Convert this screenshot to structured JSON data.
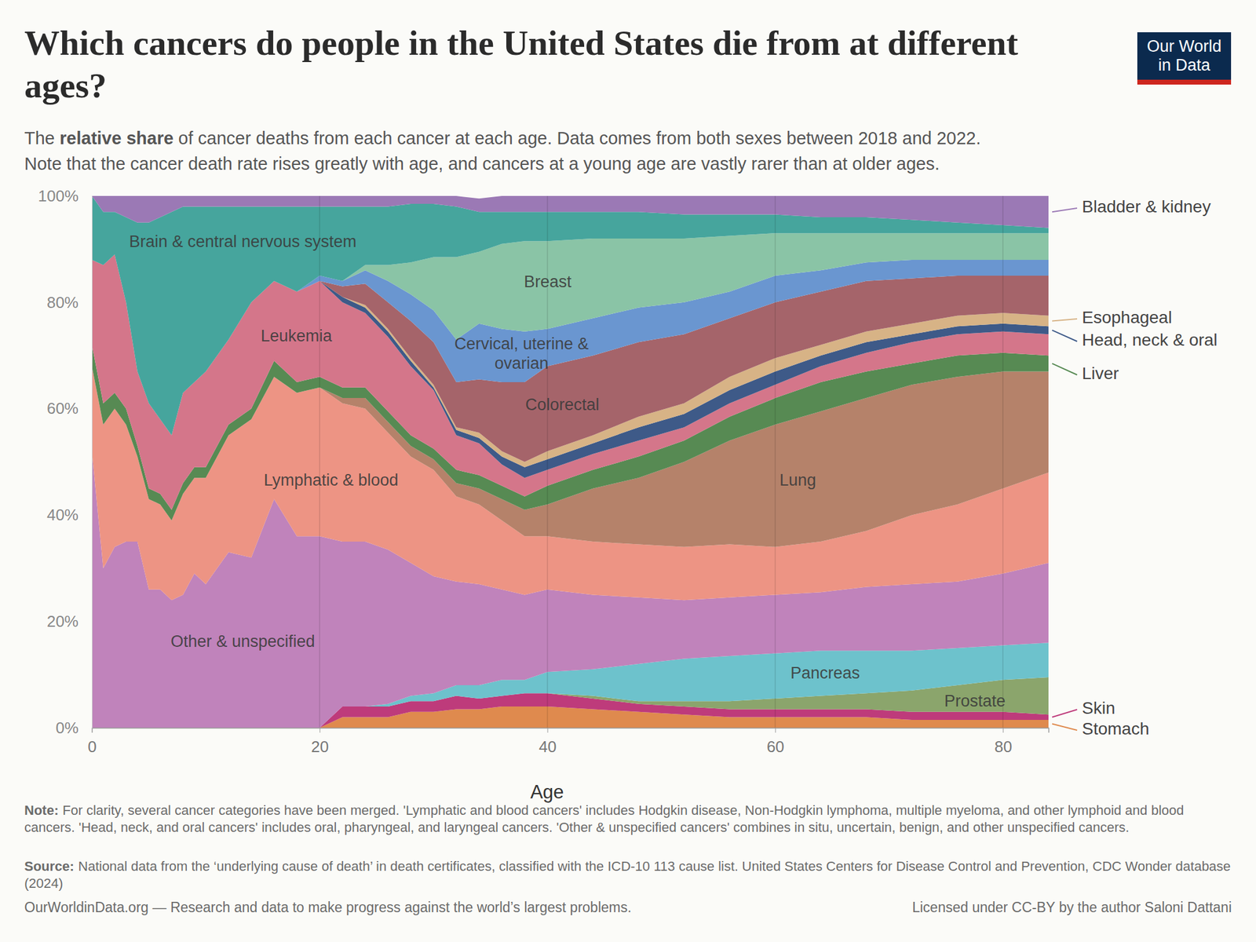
{
  "chart_data": {
    "type": "area",
    "stacked": true,
    "grid": true,
    "title": "Which cancers do people in the United States die from at different ages?",
    "subtitle": [
      "The relative share of cancer deaths from each cancer at each age. Data comes from both sexes between 2018 and 2022.",
      "Note that the cancer death rate rises greatly with age, and cancers at a young age are vastly rarer than at older ages."
    ],
    "subtitle_emphasis": "relative share",
    "logo": [
      "Our World",
      "in Data"
    ],
    "x_label": "Age",
    "x": [
      0,
      1,
      2,
      3,
      4,
      5,
      6,
      7,
      8,
      9,
      10,
      12,
      14,
      16,
      18,
      20,
      22,
      24,
      26,
      28,
      30,
      32,
      34,
      36,
      38,
      40,
      44,
      48,
      52,
      56,
      60,
      64,
      68,
      72,
      76,
      80,
      84
    ],
    "xlim": [
      0,
      84
    ],
    "xticks": [
      0,
      20,
      40,
      60,
      80
    ],
    "ylim": [
      0,
      100
    ],
    "yticks": [
      {
        "value": 0,
        "label": "0%"
      },
      {
        "value": 20,
        "label": "20%"
      },
      {
        "value": 40,
        "label": "40%"
      },
      {
        "value": 60,
        "label": "60%"
      },
      {
        "value": 80,
        "label": "80%"
      },
      {
        "value": 100,
        "label": "100%"
      }
    ],
    "series": [
      {
        "name": "Stomach",
        "color": "#df8a4e",
        "values": [
          0,
          0,
          0,
          0,
          0,
          0,
          0,
          0,
          0,
          0,
          0,
          0,
          0,
          0,
          0,
          0,
          2,
          2,
          2,
          3,
          3,
          3.5,
          3.5,
          4,
          4,
          4,
          3.5,
          3,
          2.5,
          2,
          2,
          2,
          2,
          1.5,
          1.5,
          1.5,
          1.5
        ]
      },
      {
        "name": "Skin",
        "color": "#be3b7b",
        "values": [
          0,
          0,
          0,
          0,
          0,
          0,
          0,
          0,
          0,
          0,
          0,
          0,
          0,
          0,
          0,
          0,
          2,
          2,
          2,
          2,
          2,
          2.5,
          2,
          2,
          2.5,
          2.5,
          2,
          1.5,
          1.5,
          1.5,
          1.5,
          1.5,
          1.5,
          1.5,
          1.5,
          1.5,
          1
        ]
      },
      {
        "name": "Prostate",
        "color": "#8ba56c",
        "values": [
          0,
          0,
          0,
          0,
          0,
          0,
          0,
          0,
          0,
          0,
          0,
          0,
          0,
          0,
          0,
          0,
          0,
          0,
          0,
          0,
          0,
          0,
          0,
          0,
          0,
          0,
          0.5,
          0.5,
          1,
          1.5,
          2,
          2.5,
          3,
          4,
          5,
          6,
          7
        ]
      },
      {
        "name": "Pancreas",
        "color": "#6dc2cc",
        "values": [
          0,
          0,
          0,
          0,
          0,
          0,
          0,
          0,
          0,
          0,
          0,
          0,
          0,
          0,
          0,
          0,
          0,
          0,
          0.5,
          1,
          1.5,
          2,
          2.5,
          3,
          2.5,
          4,
          5,
          7,
          8,
          8.5,
          8.5,
          8.5,
          8,
          7.5,
          7,
          6.5,
          6.5
        ]
      },
      {
        "name": "Other & unspecified",
        "color": "#c083bb",
        "values": [
          52,
          30,
          34,
          35,
          35,
          26,
          26,
          24,
          25,
          29,
          27,
          33,
          32,
          43,
          36,
          36,
          31,
          31,
          29,
          25,
          22,
          19.5,
          19,
          17,
          16,
          15.5,
          14,
          12.5,
          11,
          11,
          11,
          11,
          12,
          12.5,
          12.5,
          13.5,
          15
        ]
      },
      {
        "name": "Lymphatic & blood",
        "color": "#ed9484",
        "values": [
          16,
          27,
          26,
          22,
          16,
          17,
          16,
          15,
          19,
          18,
          20,
          22,
          26,
          23,
          27,
          28,
          26,
          25,
          22,
          20,
          20,
          16,
          15,
          13,
          11,
          10,
          10,
          10,
          10,
          10,
          9,
          9.5,
          10.5,
          13,
          14.5,
          16,
          17
        ]
      },
      {
        "name": "Lung",
        "color": "#b5826a",
        "values": [
          0,
          0,
          0,
          0,
          0,
          0,
          0,
          0,
          0,
          0,
          0,
          0,
          0,
          0,
          0,
          0,
          1,
          2,
          2,
          2,
          2,
          2.5,
          3,
          4,
          5,
          6,
          10,
          12.5,
          16,
          19.5,
          23,
          24.5,
          25,
          24.5,
          24,
          22,
          19
        ]
      },
      {
        "name": "Liver",
        "color": "#578a53",
        "values": [
          4,
          4,
          3,
          3,
          2,
          2,
          2,
          2,
          2,
          2,
          2,
          2,
          2,
          3,
          2,
          2,
          2,
          2,
          2,
          2,
          2,
          2.5,
          2.5,
          2.5,
          2.5,
          3.5,
          3.5,
          4,
          4,
          4.5,
          5,
          5.5,
          5,
          4,
          4,
          3.5,
          3
        ]
      },
      {
        "name": "Leukemia",
        "color": "#d4768a",
        "values": [
          16,
          26,
          26,
          20,
          14,
          16,
          14,
          14,
          17,
          16,
          18,
          16,
          20,
          15,
          17,
          18,
          16,
          14,
          14,
          13,
          11,
          6.5,
          6,
          4,
          3.5,
          3,
          3,
          3,
          2.5,
          2.5,
          2.5,
          3,
          3.5,
          4,
          4,
          4,
          4
        ]
      },
      {
        "name": "Head, neck & oral",
        "color": "#3e5a88",
        "values": [
          0,
          0,
          0,
          0,
          0,
          0,
          0,
          0,
          0,
          0,
          0,
          0,
          0,
          0,
          0,
          0,
          1,
          1,
          1,
          1,
          0.5,
          1,
          1,
          1.5,
          2,
          2,
          2,
          2.5,
          2.5,
          2.5,
          2.5,
          2,
          2,
          1.5,
          1.5,
          1.5,
          1.5
        ]
      },
      {
        "name": "Esophageal",
        "color": "#d7b386",
        "values": [
          0,
          0,
          0,
          0,
          0,
          0,
          0,
          0,
          0,
          0,
          0,
          0,
          0,
          0,
          0,
          0,
          0,
          0.5,
          0.5,
          0.5,
          0.5,
          0.5,
          1,
          1,
          1,
          1.5,
          1.5,
          2,
          2,
          2.5,
          2.5,
          2,
          2,
          2,
          2,
          2,
          2
        ]
      },
      {
        "name": "Colorectal",
        "color": "#a5646a",
        "values": [
          0,
          0,
          0,
          0,
          0,
          0,
          0,
          0,
          0,
          0,
          0,
          0,
          0,
          0,
          0,
          0,
          2,
          4,
          5,
          7,
          8,
          8.5,
          10,
          13,
          15,
          16,
          15,
          14,
          13,
          11,
          10.5,
          10,
          9.5,
          8.5,
          7.5,
          7,
          7.5
        ]
      },
      {
        "name": "Cervical, uterine & ovarian",
        "color": "#6a96d0",
        "values": [
          0,
          0,
          0,
          0,
          0,
          0,
          0,
          0,
          0,
          0,
          0,
          0,
          0,
          0,
          0,
          1,
          1,
          2.5,
          4,
          5,
          6,
          8,
          10.5,
          10,
          9.5,
          7,
          7,
          6.5,
          6,
          5,
          5,
          4,
          3.5,
          3.5,
          3,
          3,
          3
        ]
      },
      {
        "name": "Breast",
        "color": "#8ac4a6",
        "values": [
          0,
          0,
          0,
          0,
          0,
          0,
          0,
          0,
          0,
          0,
          0,
          0,
          0,
          0,
          0,
          0,
          0,
          1,
          3,
          6,
          10,
          15.5,
          13.5,
          16,
          17,
          16.5,
          15,
          13,
          12,
          10.5,
          8,
          7,
          5.5,
          5,
          5,
          5,
          5
        ]
      },
      {
        "name": "Brain & central nervous system",
        "color": "#46a59d",
        "values": [
          12,
          10,
          8,
          16,
          28,
          34,
          38,
          42,
          35,
          33,
          31,
          25,
          18,
          14,
          16,
          13,
          14,
          11,
          11,
          11,
          10,
          9.5,
          7.5,
          6,
          5.5,
          5.5,
          5,
          5,
          4.5,
          4,
          3.5,
          3,
          3,
          2.5,
          2,
          1.5,
          1
        ]
      },
      {
        "name": "Bladder & kidney",
        "color": "#9b79b5",
        "values": [
          0,
          3,
          3,
          4,
          5,
          5,
          4,
          3,
          2,
          2,
          2,
          2,
          2,
          2,
          2,
          2,
          2,
          2,
          2,
          1.5,
          1.5,
          2,
          2.5,
          3,
          3,
          3,
          3,
          3,
          3.5,
          3.5,
          3.5,
          4,
          4,
          4.5,
          5,
          5.5,
          6
        ]
      }
    ],
    "note_label": "Note:",
    "note": "For clarity, several cancer categories have been merged. 'Lymphatic and blood cancers' includes Hodgkin disease, Non-Hodgkin lymphoma, multiple myeloma, and other lymphoid and blood cancers. 'Head, neck, and oral cancers' includes oral, pharyngeal, and laryngeal cancers. 'Other & unspecified cancers' combines in situ, uncertain, benign, and other unspecified cancers.",
    "source_label": "Source:",
    "source": "National data from the ‘underlying cause of death’ in death certificates, classified with the ICD-10 113 cause list. United States Centers for Disease Control and Prevention, CDC Wonder database (2024)",
    "footer_left": "OurWorldinData.org — Research and data to make progress against the world’s largest problems.",
    "footer_right": "Licensed under CC-BY by the author Saloni Dattani"
  }
}
